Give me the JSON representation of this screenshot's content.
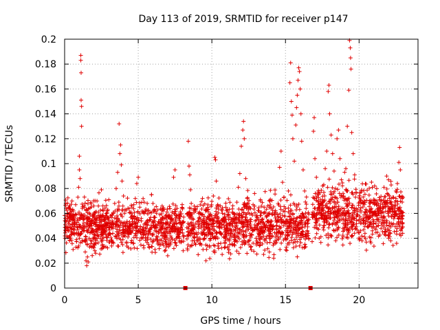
{
  "chart_data": {
    "type": "scatter",
    "title": "Day 113 of 2019, SRMTID for receiver p147",
    "xlabel": "GPS time / hours",
    "ylabel": "SRMTID / TECUs",
    "xlim": [
      0,
      24
    ],
    "ylim": [
      0,
      0.2
    ],
    "xticks": [
      0,
      5,
      10,
      15,
      20
    ],
    "yticks": [
      0,
      0.02,
      0.04,
      0.06,
      0.08,
      0.1,
      0.12,
      0.14,
      0.16,
      0.18,
      0.2
    ],
    "grid": true,
    "marker": "plus",
    "color": "#e00000",
    "gap_markers_x": [
      8.2,
      16.7
    ],
    "segments": [
      {
        "x": [
          0.0,
          8.1
        ],
        "level": 0.05,
        "spread": 0.018
      },
      {
        "x": [
          8.3,
          16.6
        ],
        "level": 0.05,
        "spread": 0.02
      },
      {
        "x": [
          16.8,
          23.0
        ],
        "level": 0.06,
        "spread": 0.022
      }
    ],
    "points": [
      [
        0.05,
        0.056
      ],
      [
        0.1,
        0.064
      ],
      [
        0.15,
        0.048
      ],
      [
        0.2,
        0.06
      ],
      [
        0.25,
        0.052
      ],
      [
        0.3,
        0.041
      ],
      [
        0.35,
        0.066
      ],
      [
        0.4,
        0.058
      ],
      [
        0.45,
        0.047
      ],
      [
        0.5,
        0.07
      ],
      [
        0.55,
        0.055
      ],
      [
        0.6,
        0.062
      ],
      [
        0.65,
        0.044
      ],
      [
        0.7,
        0.051
      ],
      [
        0.75,
        0.067
      ],
      [
        0.8,
        0.059
      ],
      [
        0.85,
        0.049
      ],
      [
        0.9,
        0.073
      ],
      [
        0.95,
        0.081
      ],
      [
        1.0,
        0.095
      ],
      [
        1.0,
        0.106
      ],
      [
        1.05,
        0.088
      ],
      [
        1.1,
        0.187
      ],
      [
        1.1,
        0.183
      ],
      [
        1.12,
        0.173
      ],
      [
        1.12,
        0.151
      ],
      [
        1.15,
        0.146
      ],
      [
        1.15,
        0.13
      ],
      [
        1.2,
        0.064
      ],
      [
        1.25,
        0.055
      ],
      [
        1.3,
        0.046
      ],
      [
        1.35,
        0.038
      ],
      [
        1.4,
        0.029
      ],
      [
        1.45,
        0.022
      ],
      [
        1.5,
        0.018
      ],
      [
        1.55,
        0.025
      ],
      [
        1.6,
        0.021
      ],
      [
        1.7,
        0.033
      ],
      [
        1.8,
        0.045
      ],
      [
        1.9,
        0.058
      ],
      [
        2.0,
        0.052
      ],
      [
        2.1,
        0.061
      ],
      [
        2.2,
        0.07
      ],
      [
        2.3,
        0.048
      ],
      [
        2.4,
        0.057
      ],
      [
        2.5,
        0.079
      ],
      [
        2.6,
        0.066
      ],
      [
        2.7,
        0.054
      ],
      [
        2.8,
        0.043
      ],
      [
        2.9,
        0.062
      ],
      [
        3.0,
        0.071
      ],
      [
        3.1,
        0.058
      ],
      [
        3.2,
        0.049
      ],
      [
        3.3,
        0.06
      ],
      [
        3.4,
        0.068
      ],
      [
        3.5,
        0.08
      ],
      [
        3.6,
        0.093
      ],
      [
        3.7,
        0.132
      ],
      [
        3.75,
        0.108
      ],
      [
        3.8,
        0.115
      ],
      [
        3.85,
        0.099
      ],
      [
        3.9,
        0.086
      ],
      [
        4.0,
        0.074
      ],
      [
        4.1,
        0.063
      ],
      [
        4.2,
        0.052
      ],
      [
        4.3,
        0.041
      ],
      [
        4.4,
        0.05
      ],
      [
        4.5,
        0.061
      ],
      [
        4.6,
        0.058
      ],
      [
        4.7,
        0.067
      ],
      [
        4.8,
        0.072
      ],
      [
        4.9,
        0.084
      ],
      [
        5.0,
        0.089
      ],
      [
        5.1,
        0.065
      ],
      [
        5.2,
        0.056
      ],
      [
        5.3,
        0.047
      ],
      [
        5.4,
        0.069
      ],
      [
        5.5,
        0.062
      ],
      [
        5.6,
        0.051
      ],
      [
        5.7,
        0.043
      ],
      [
        5.8,
        0.061
      ],
      [
        5.9,
        0.075
      ],
      [
        6.0,
        0.068
      ],
      [
        6.1,
        0.057
      ],
      [
        6.2,
        0.049
      ],
      [
        6.3,
        0.038
      ],
      [
        6.4,
        0.046
      ],
      [
        6.5,
        0.055
      ],
      [
        6.6,
        0.063
      ],
      [
        6.7,
        0.052
      ],
      [
        6.8,
        0.041
      ],
      [
        6.9,
        0.033
      ],
      [
        7.0,
        0.026
      ],
      [
        7.1,
        0.044
      ],
      [
        7.2,
        0.053
      ],
      [
        7.3,
        0.061
      ],
      [
        7.4,
        0.089
      ],
      [
        7.5,
        0.095
      ],
      [
        7.6,
        0.058
      ],
      [
        7.7,
        0.045
      ],
      [
        7.8,
        0.038
      ],
      [
        7.9,
        0.052
      ],
      [
        8.0,
        0.047
      ],
      [
        8.05,
        0.03
      ],
      [
        8.4,
        0.118
      ],
      [
        8.45,
        0.098
      ],
      [
        8.5,
        0.091
      ],
      [
        8.55,
        0.079
      ],
      [
        8.6,
        0.068
      ],
      [
        8.7,
        0.056
      ],
      [
        8.8,
        0.044
      ],
      [
        8.9,
        0.035
      ],
      [
        9.0,
        0.041
      ],
      [
        9.1,
        0.048
      ],
      [
        9.2,
        0.039
      ],
      [
        9.3,
        0.052
      ],
      [
        9.4,
        0.031
      ],
      [
        9.5,
        0.043
      ],
      [
        9.6,
        0.022
      ],
      [
        9.7,
        0.034
      ],
      [
        9.8,
        0.046
      ],
      [
        9.9,
        0.04
      ],
      [
        10.0,
        0.058
      ],
      [
        10.1,
        0.074
      ],
      [
        10.2,
        0.105
      ],
      [
        10.25,
        0.103
      ],
      [
        10.3,
        0.086
      ],
      [
        10.4,
        0.067
      ],
      [
        10.5,
        0.045
      ],
      [
        10.6,
        0.036
      ],
      [
        10.7,
        0.027
      ],
      [
        10.8,
        0.041
      ],
      [
        10.9,
        0.033
      ],
      [
        11.0,
        0.048
      ],
      [
        11.1,
        0.039
      ],
      [
        11.2,
        0.052
      ],
      [
        11.3,
        0.044
      ],
      [
        11.4,
        0.061
      ],
      [
        11.5,
        0.053
      ],
      [
        11.6,
        0.046
      ],
      [
        11.7,
        0.069
      ],
      [
        11.8,
        0.081
      ],
      [
        11.9,
        0.092
      ],
      [
        12.0,
        0.114
      ],
      [
        12.1,
        0.127
      ],
      [
        12.15,
        0.134
      ],
      [
        12.2,
        0.12
      ],
      [
        12.3,
        0.088
      ],
      [
        12.4,
        0.072
      ],
      [
        12.5,
        0.063
      ],
      [
        12.6,
        0.055
      ],
      [
        12.7,
        0.048
      ],
      [
        12.8,
        0.067
      ],
      [
        12.9,
        0.076
      ],
      [
        13.0,
        0.058
      ],
      [
        13.1,
        0.049
      ],
      [
        13.2,
        0.062
      ],
      [
        13.3,
        0.071
      ],
      [
        13.4,
        0.055
      ],
      [
        13.5,
        0.046
      ],
      [
        13.6,
        0.038
      ],
      [
        13.7,
        0.057
      ],
      [
        13.8,
        0.066
      ],
      [
        13.9,
        0.059
      ],
      [
        14.0,
        0.05
      ],
      [
        14.1,
        0.042
      ],
      [
        14.2,
        0.024
      ],
      [
        14.3,
        0.036
      ],
      [
        14.4,
        0.053
      ],
      [
        14.5,
        0.068
      ],
      [
        14.6,
        0.097
      ],
      [
        14.7,
        0.11
      ],
      [
        14.8,
        0.085
      ],
      [
        14.9,
        0.073
      ],
      [
        15.0,
        0.064
      ],
      [
        15.1,
        0.055
      ],
      [
        15.2,
        0.078
      ],
      [
        15.3,
        0.165
      ],
      [
        15.35,
        0.181
      ],
      [
        15.4,
        0.15
      ],
      [
        15.45,
        0.139
      ],
      [
        15.5,
        0.12
      ],
      [
        15.6,
        0.102
      ],
      [
        15.7,
        0.131
      ],
      [
        15.75,
        0.145
      ],
      [
        15.8,
        0.155
      ],
      [
        15.85,
        0.167
      ],
      [
        15.9,
        0.177
      ],
      [
        15.95,
        0.174
      ],
      [
        16.0,
        0.16
      ],
      [
        16.05,
        0.14
      ],
      [
        16.1,
        0.118
      ],
      [
        16.2,
        0.095
      ],
      [
        16.3,
        0.078
      ],
      [
        16.4,
        0.064
      ],
      [
        16.5,
        0.052
      ],
      [
        16.55,
        0.044
      ],
      [
        16.9,
        0.126
      ],
      [
        16.95,
        0.137
      ],
      [
        17.0,
        0.104
      ],
      [
        17.1,
        0.089
      ],
      [
        17.2,
        0.077
      ],
      [
        17.3,
        0.065
      ],
      [
        17.4,
        0.059
      ],
      [
        17.5,
        0.071
      ],
      [
        17.6,
        0.083
      ],
      [
        17.7,
        0.096
      ],
      [
        17.8,
        0.11
      ],
      [
        17.9,
        0.158
      ],
      [
        17.95,
        0.163
      ],
      [
        18.0,
        0.14
      ],
      [
        18.1,
        0.123
      ],
      [
        18.2,
        0.108
      ],
      [
        18.3,
        0.094
      ],
      [
        18.4,
        0.08
      ],
      [
        18.5,
        0.12
      ],
      [
        18.6,
        0.127
      ],
      [
        18.7,
        0.104
      ],
      [
        18.8,
        0.087
      ],
      [
        18.9,
        0.073
      ],
      [
        19.0,
        0.062
      ],
      [
        19.1,
        0.096
      ],
      [
        19.2,
        0.13
      ],
      [
        19.3,
        0.159
      ],
      [
        19.35,
        0.199
      ],
      [
        19.4,
        0.193
      ],
      [
        19.42,
        0.185
      ],
      [
        19.45,
        0.176
      ],
      [
        19.5,
        0.125
      ],
      [
        19.6,
        0.108
      ],
      [
        19.7,
        0.091
      ],
      [
        19.8,
        0.077
      ],
      [
        19.9,
        0.063
      ],
      [
        20.0,
        0.055
      ],
      [
        20.1,
        0.046
      ],
      [
        20.2,
        0.038
      ],
      [
        20.3,
        0.052
      ],
      [
        20.4,
        0.044
      ],
      [
        20.5,
        0.057
      ],
      [
        20.6,
        0.049
      ],
      [
        20.7,
        0.041
      ],
      [
        20.8,
        0.053
      ],
      [
        20.9,
        0.046
      ],
      [
        21.0,
        0.06
      ],
      [
        21.1,
        0.068
      ],
      [
        21.2,
        0.055
      ],
      [
        21.3,
        0.062
      ],
      [
        21.4,
        0.071
      ],
      [
        21.5,
        0.058
      ],
      [
        21.6,
        0.064
      ],
      [
        21.7,
        0.052
      ],
      [
        21.8,
        0.067
      ],
      [
        21.9,
        0.076
      ],
      [
        22.0,
        0.087
      ],
      [
        22.1,
        0.069
      ],
      [
        22.2,
        0.058
      ],
      [
        22.3,
        0.073
      ],
      [
        22.4,
        0.066
      ],
      [
        22.5,
        0.078
      ],
      [
        22.6,
        0.084
      ],
      [
        22.7,
        0.101
      ],
      [
        22.75,
        0.113
      ],
      [
        22.8,
        0.095
      ],
      [
        22.85,
        0.06
      ],
      [
        22.9,
        0.048
      ]
    ]
  }
}
